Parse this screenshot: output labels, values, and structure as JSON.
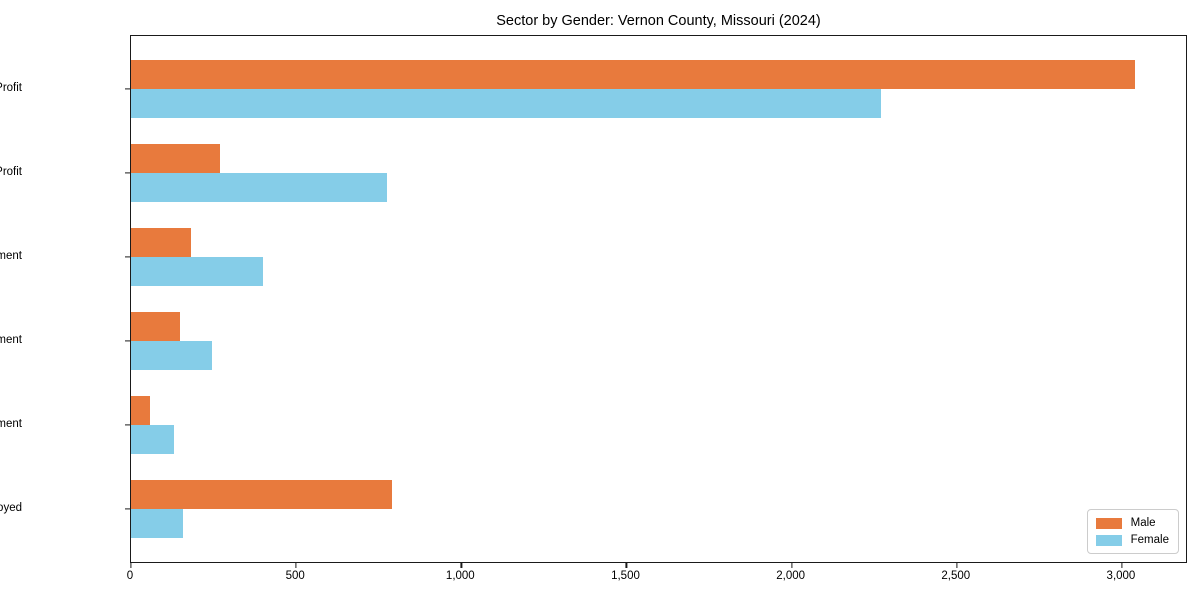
{
  "chart_data": {
    "type": "bar",
    "orientation": "horizontal",
    "title": "Sector by Gender: Vernon County, Missouri (2024)",
    "categories": [
      "Private For-Profit",
      "Private Non-Profit",
      "Local Government",
      "State Government",
      "Federal Government",
      "Self-Employed"
    ],
    "series": [
      {
        "name": "Male",
        "color": "#e87a3d",
        "values": [
          3040,
          270,
          180,
          148,
          58,
          790
        ]
      },
      {
        "name": "Female",
        "color": "#85cde8",
        "values": [
          2270,
          775,
          400,
          245,
          130,
          158
        ]
      }
    ],
    "xlabel": "",
    "ylabel": "",
    "xlim": [
      0,
      3200
    ],
    "xticks": [
      0,
      500,
      1000,
      1500,
      2000,
      2500,
      3000
    ],
    "xtick_labels": [
      "0",
      "500",
      "1,000",
      "1,500",
      "2,000",
      "2,500",
      "3,000"
    ],
    "grid": false,
    "legend_position": "lower right",
    "colors": {
      "male": "#e87a3d",
      "female": "#85cde8",
      "spine": "#1a1a1a",
      "text": "#000000"
    }
  }
}
